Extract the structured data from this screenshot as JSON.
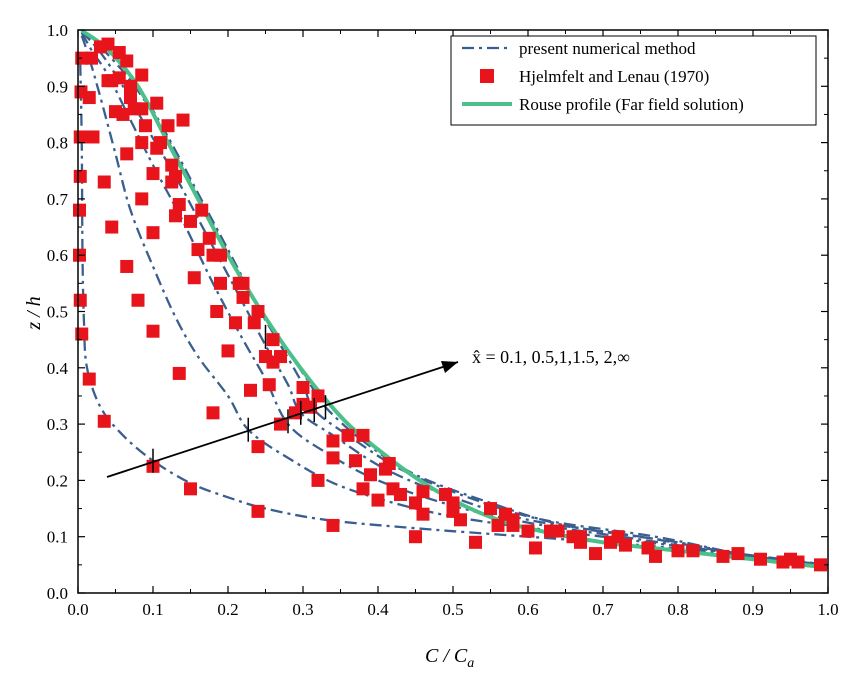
{
  "chart_data": {
    "type": "line",
    "xlabel": "C / C",
    "xlabel_sub": "a",
    "ylabel": "z / h",
    "xlim": [
      0,
      1
    ],
    "ylim": [
      0,
      1
    ],
    "xticks": [
      "0.0",
      "0.1",
      "0.2",
      "0.3",
      "0.4",
      "0.5",
      "0.6",
      "0.7",
      "0.8",
      "0.9",
      "1.0"
    ],
    "yticks": [
      "0.0",
      "0.1",
      "0.2",
      "0.3",
      "0.4",
      "0.5",
      "0.6",
      "0.7",
      "0.8",
      "0.9",
      "1.0"
    ],
    "legend": {
      "placement": "top-right",
      "entries": [
        {
          "label": "present numerical method",
          "style": "dash-dot",
          "color": "#3a5f8f"
        },
        {
          "label": "Hjelmfelt and Lenau (1970)",
          "style": "square-marker",
          "color": "#e8141c"
        },
        {
          "label": "Rouse profile (Far field solution)",
          "style": "solid",
          "color": "#4cc08a"
        }
      ]
    },
    "annotation": "x̂ = 0.1, 0.5,1,1.5, 2,∞",
    "series": [
      {
        "name": "x̂ = 0.1",
        "style": "dash-dot",
        "points": [
          [
            0.003,
            0.94
          ],
          [
            0.005,
            0.8
          ],
          [
            0.006,
            0.6
          ],
          [
            0.008,
            0.48
          ],
          [
            0.012,
            0.4
          ],
          [
            0.03,
            0.33
          ],
          [
            0.06,
            0.28
          ],
          [
            0.1,
            0.235
          ],
          [
            0.15,
            0.195
          ],
          [
            0.2,
            0.17
          ],
          [
            0.25,
            0.15
          ],
          [
            0.33,
            0.13
          ],
          [
            0.45,
            0.115
          ],
          [
            0.6,
            0.1
          ],
          [
            0.75,
            0.085
          ],
          [
            0.9,
            0.065
          ],
          [
            1.0,
            0.05
          ]
        ]
      },
      {
        "name": "x̂ = 0.5",
        "style": "dash-dot",
        "points": [
          [
            0.005,
            0.99
          ],
          [
            0.015,
            0.95
          ],
          [
            0.03,
            0.88
          ],
          [
            0.05,
            0.78
          ],
          [
            0.07,
            0.68
          ],
          [
            0.1,
            0.58
          ],
          [
            0.13,
            0.49
          ],
          [
            0.16,
            0.42
          ],
          [
            0.2,
            0.35
          ],
          [
            0.227,
            0.29
          ],
          [
            0.28,
            0.24
          ],
          [
            0.35,
            0.19
          ],
          [
            0.45,
            0.15
          ],
          [
            0.55,
            0.125
          ],
          [
            0.7,
            0.1
          ],
          [
            0.85,
            0.075
          ],
          [
            1.0,
            0.05
          ]
        ]
      },
      {
        "name": "x̂ = 1",
        "style": "dash-dot",
        "points": [
          [
            0.005,
            0.995
          ],
          [
            0.02,
            0.96
          ],
          [
            0.04,
            0.92
          ],
          [
            0.07,
            0.84
          ],
          [
            0.1,
            0.76
          ],
          [
            0.14,
            0.66
          ],
          [
            0.18,
            0.55
          ],
          [
            0.22,
            0.45
          ],
          [
            0.25,
            0.38
          ],
          [
            0.28,
            0.3
          ],
          [
            0.33,
            0.25
          ],
          [
            0.4,
            0.2
          ],
          [
            0.5,
            0.155
          ],
          [
            0.6,
            0.125
          ],
          [
            0.75,
            0.095
          ],
          [
            0.9,
            0.065
          ],
          [
            1.0,
            0.05
          ]
        ]
      },
      {
        "name": "x̂ = 1.5",
        "style": "dash-dot",
        "points": [
          [
            0.005,
            0.997
          ],
          [
            0.03,
            0.96
          ],
          [
            0.06,
            0.9
          ],
          [
            0.09,
            0.83
          ],
          [
            0.13,
            0.74
          ],
          [
            0.17,
            0.64
          ],
          [
            0.21,
            0.54
          ],
          [
            0.25,
            0.44
          ],
          [
            0.28,
            0.37
          ],
          [
            0.297,
            0.32
          ],
          [
            0.34,
            0.28
          ],
          [
            0.41,
            0.22
          ],
          [
            0.5,
            0.17
          ],
          [
            0.6,
            0.13
          ],
          [
            0.75,
            0.1
          ],
          [
            0.9,
            0.065
          ],
          [
            1.0,
            0.05
          ]
        ]
      },
      {
        "name": "x̂ = 2",
        "style": "dash-dot",
        "points": [
          [
            0.005,
            0.998
          ],
          [
            0.03,
            0.97
          ],
          [
            0.07,
            0.91
          ],
          [
            0.11,
            0.83
          ],
          [
            0.15,
            0.73
          ],
          [
            0.19,
            0.63
          ],
          [
            0.23,
            0.53
          ],
          [
            0.27,
            0.44
          ],
          [
            0.3,
            0.37
          ],
          [
            0.315,
            0.325
          ],
          [
            0.36,
            0.28
          ],
          [
            0.43,
            0.22
          ],
          [
            0.52,
            0.17
          ],
          [
            0.62,
            0.13
          ],
          [
            0.77,
            0.1
          ],
          [
            0.9,
            0.065
          ],
          [
            1.0,
            0.05
          ]
        ]
      },
      {
        "name": "x̂ = ∞",
        "style": "dash-dot",
        "points": [
          [
            0.005,
            0.999
          ],
          [
            0.04,
            0.965
          ],
          [
            0.08,
            0.9
          ],
          [
            0.12,
            0.81
          ],
          [
            0.16,
            0.71
          ],
          [
            0.2,
            0.61
          ],
          [
            0.24,
            0.51
          ],
          [
            0.28,
            0.43
          ],
          [
            0.31,
            0.37
          ],
          [
            0.33,
            0.33
          ],
          [
            0.38,
            0.27
          ],
          [
            0.45,
            0.21
          ],
          [
            0.55,
            0.16
          ],
          [
            0.65,
            0.12
          ],
          [
            0.8,
            0.09
          ],
          [
            0.9,
            0.065
          ],
          [
            1.0,
            0.05
          ]
        ]
      },
      {
        "name": "Rouse profile",
        "style": "solid",
        "points": [
          [
            0.005,
            0.999
          ],
          [
            0.04,
            0.965
          ],
          [
            0.08,
            0.9
          ],
          [
            0.12,
            0.8
          ],
          [
            0.16,
            0.7
          ],
          [
            0.2,
            0.6
          ],
          [
            0.24,
            0.51
          ],
          [
            0.28,
            0.43
          ],
          [
            0.32,
            0.36
          ],
          [
            0.36,
            0.3
          ],
          [
            0.4,
            0.255
          ],
          [
            0.45,
            0.205
          ],
          [
            0.5,
            0.165
          ],
          [
            0.55,
            0.135
          ],
          [
            0.6,
            0.115
          ],
          [
            0.7,
            0.09
          ],
          [
            0.8,
            0.075
          ],
          [
            0.9,
            0.06
          ],
          [
            1.0,
            0.045
          ]
        ]
      }
    ],
    "markers": [
      [
        0.1,
        0.225
      ],
      [
        0.15,
        0.185
      ],
      [
        0.24,
        0.145
      ],
      [
        0.34,
        0.12
      ],
      [
        0.45,
        0.1
      ],
      [
        0.53,
        0.09
      ],
      [
        0.61,
        0.08
      ],
      [
        0.69,
        0.07
      ],
      [
        0.035,
        0.305
      ],
      [
        0.015,
        0.38
      ],
      [
        0.005,
        0.46
      ],
      [
        0.003,
        0.52
      ],
      [
        0.002,
        0.6
      ],
      [
        0.002,
        0.68
      ],
      [
        0.003,
        0.74
      ],
      [
        0.003,
        0.81
      ],
      [
        0.004,
        0.89
      ],
      [
        0.005,
        0.95
      ],
      [
        0.24,
        0.26
      ],
      [
        0.18,
        0.32
      ],
      [
        0.135,
        0.39
      ],
      [
        0.1,
        0.465
      ],
      [
        0.08,
        0.52
      ],
      [
        0.065,
        0.58
      ],
      [
        0.045,
        0.65
      ],
      [
        0.035,
        0.73
      ],
      [
        0.02,
        0.81
      ],
      [
        0.015,
        0.88
      ],
      [
        0.018,
        0.95
      ],
      [
        0.27,
        0.3
      ],
      [
        0.32,
        0.2
      ],
      [
        0.4,
        0.165
      ],
      [
        0.46,
        0.14
      ],
      [
        0.56,
        0.12
      ],
      [
        0.23,
        0.36
      ],
      [
        0.2,
        0.43
      ],
      [
        0.185,
        0.5
      ],
      [
        0.155,
        0.56
      ],
      [
        0.1,
        0.64
      ],
      [
        0.085,
        0.7
      ],
      [
        0.065,
        0.78
      ],
      [
        0.06,
        0.85
      ],
      [
        0.04,
        0.91
      ],
      [
        0.03,
        0.97
      ],
      [
        0.29,
        0.32
      ],
      [
        0.34,
        0.24
      ],
      [
        0.38,
        0.185
      ],
      [
        0.45,
        0.16
      ],
      [
        0.51,
        0.13
      ],
      [
        0.6,
        0.11
      ],
      [
        0.67,
        0.09
      ],
      [
        0.76,
        0.08
      ],
      [
        0.255,
        0.37
      ],
      [
        0.25,
        0.42
      ],
      [
        0.21,
        0.48
      ],
      [
        0.19,
        0.55
      ],
      [
        0.16,
        0.61
      ],
      [
        0.13,
        0.67
      ],
      [
        0.1,
        0.745
      ],
      [
        0.085,
        0.8
      ],
      [
        0.05,
        0.855
      ],
      [
        0.045,
        0.91
      ],
      [
        0.3,
        0.335
      ],
      [
        0.34,
        0.27
      ],
      [
        0.39,
        0.21
      ],
      [
        0.42,
        0.185
      ],
      [
        0.5,
        0.16
      ],
      [
        0.58,
        0.13
      ],
      [
        0.66,
        0.1
      ],
      [
        0.73,
        0.085
      ],
      [
        0.26,
        0.41
      ],
      [
        0.235,
        0.48
      ],
      [
        0.22,
        0.55
      ],
      [
        0.18,
        0.6
      ],
      [
        0.165,
        0.68
      ],
      [
        0.125,
        0.73
      ],
      [
        0.105,
        0.79
      ],
      [
        0.075,
        0.86
      ],
      [
        0.055,
        0.915
      ],
      [
        0.31,
        0.33
      ],
      [
        0.36,
        0.28
      ],
      [
        0.41,
        0.22
      ],
      [
        0.46,
        0.18
      ],
      [
        0.55,
        0.15
      ],
      [
        0.63,
        0.11
      ],
      [
        0.71,
        0.09
      ],
      [
        0.8,
        0.075
      ],
      [
        0.27,
        0.42
      ],
      [
        0.24,
        0.5
      ],
      [
        0.215,
        0.55
      ],
      [
        0.175,
        0.63
      ],
      [
        0.135,
        0.69
      ],
      [
        0.13,
        0.74
      ],
      [
        0.11,
        0.8
      ],
      [
        0.085,
        0.86
      ],
      [
        0.07,
        0.9
      ],
      [
        0.065,
        0.945
      ],
      [
        0.32,
        0.35
      ],
      [
        0.38,
        0.28
      ],
      [
        0.415,
        0.23
      ],
      [
        0.49,
        0.175
      ],
      [
        0.57,
        0.14
      ],
      [
        0.64,
        0.11
      ],
      [
        0.72,
        0.1
      ],
      [
        0.82,
        0.075
      ],
      [
        0.88,
        0.07
      ],
      [
        0.91,
        0.06
      ],
      [
        0.94,
        0.055
      ],
      [
        0.96,
        0.055
      ],
      [
        0.99,
        0.05
      ],
      [
        0.95,
        0.06
      ],
      [
        0.86,
        0.065
      ],
      [
        0.77,
        0.065
      ],
      [
        0.67,
        0.1
      ],
      [
        0.58,
        0.12
      ],
      [
        0.5,
        0.145
      ],
      [
        0.43,
        0.175
      ],
      [
        0.37,
        0.235
      ],
      [
        0.3,
        0.365
      ],
      [
        0.26,
        0.45
      ],
      [
        0.22,
        0.525
      ],
      [
        0.19,
        0.6
      ],
      [
        0.15,
        0.66
      ],
      [
        0.125,
        0.76
      ],
      [
        0.09,
        0.83
      ],
      [
        0.07,
        0.88
      ],
      [
        0.04,
        0.975
      ],
      [
        0.12,
        0.83
      ],
      [
        0.14,
        0.84
      ],
      [
        0.105,
        0.87
      ],
      [
        0.085,
        0.92
      ],
      [
        0.055,
        0.96
      ]
    ],
    "tick_marks": [
      [
        0.1,
        0.235
      ],
      [
        0.227,
        0.29
      ],
      [
        0.28,
        0.305
      ],
      [
        0.297,
        0.32
      ],
      [
        0.315,
        0.325
      ],
      [
        0.33,
        0.33
      ],
      [
        0.25,
        0.455
      ]
    ]
  }
}
